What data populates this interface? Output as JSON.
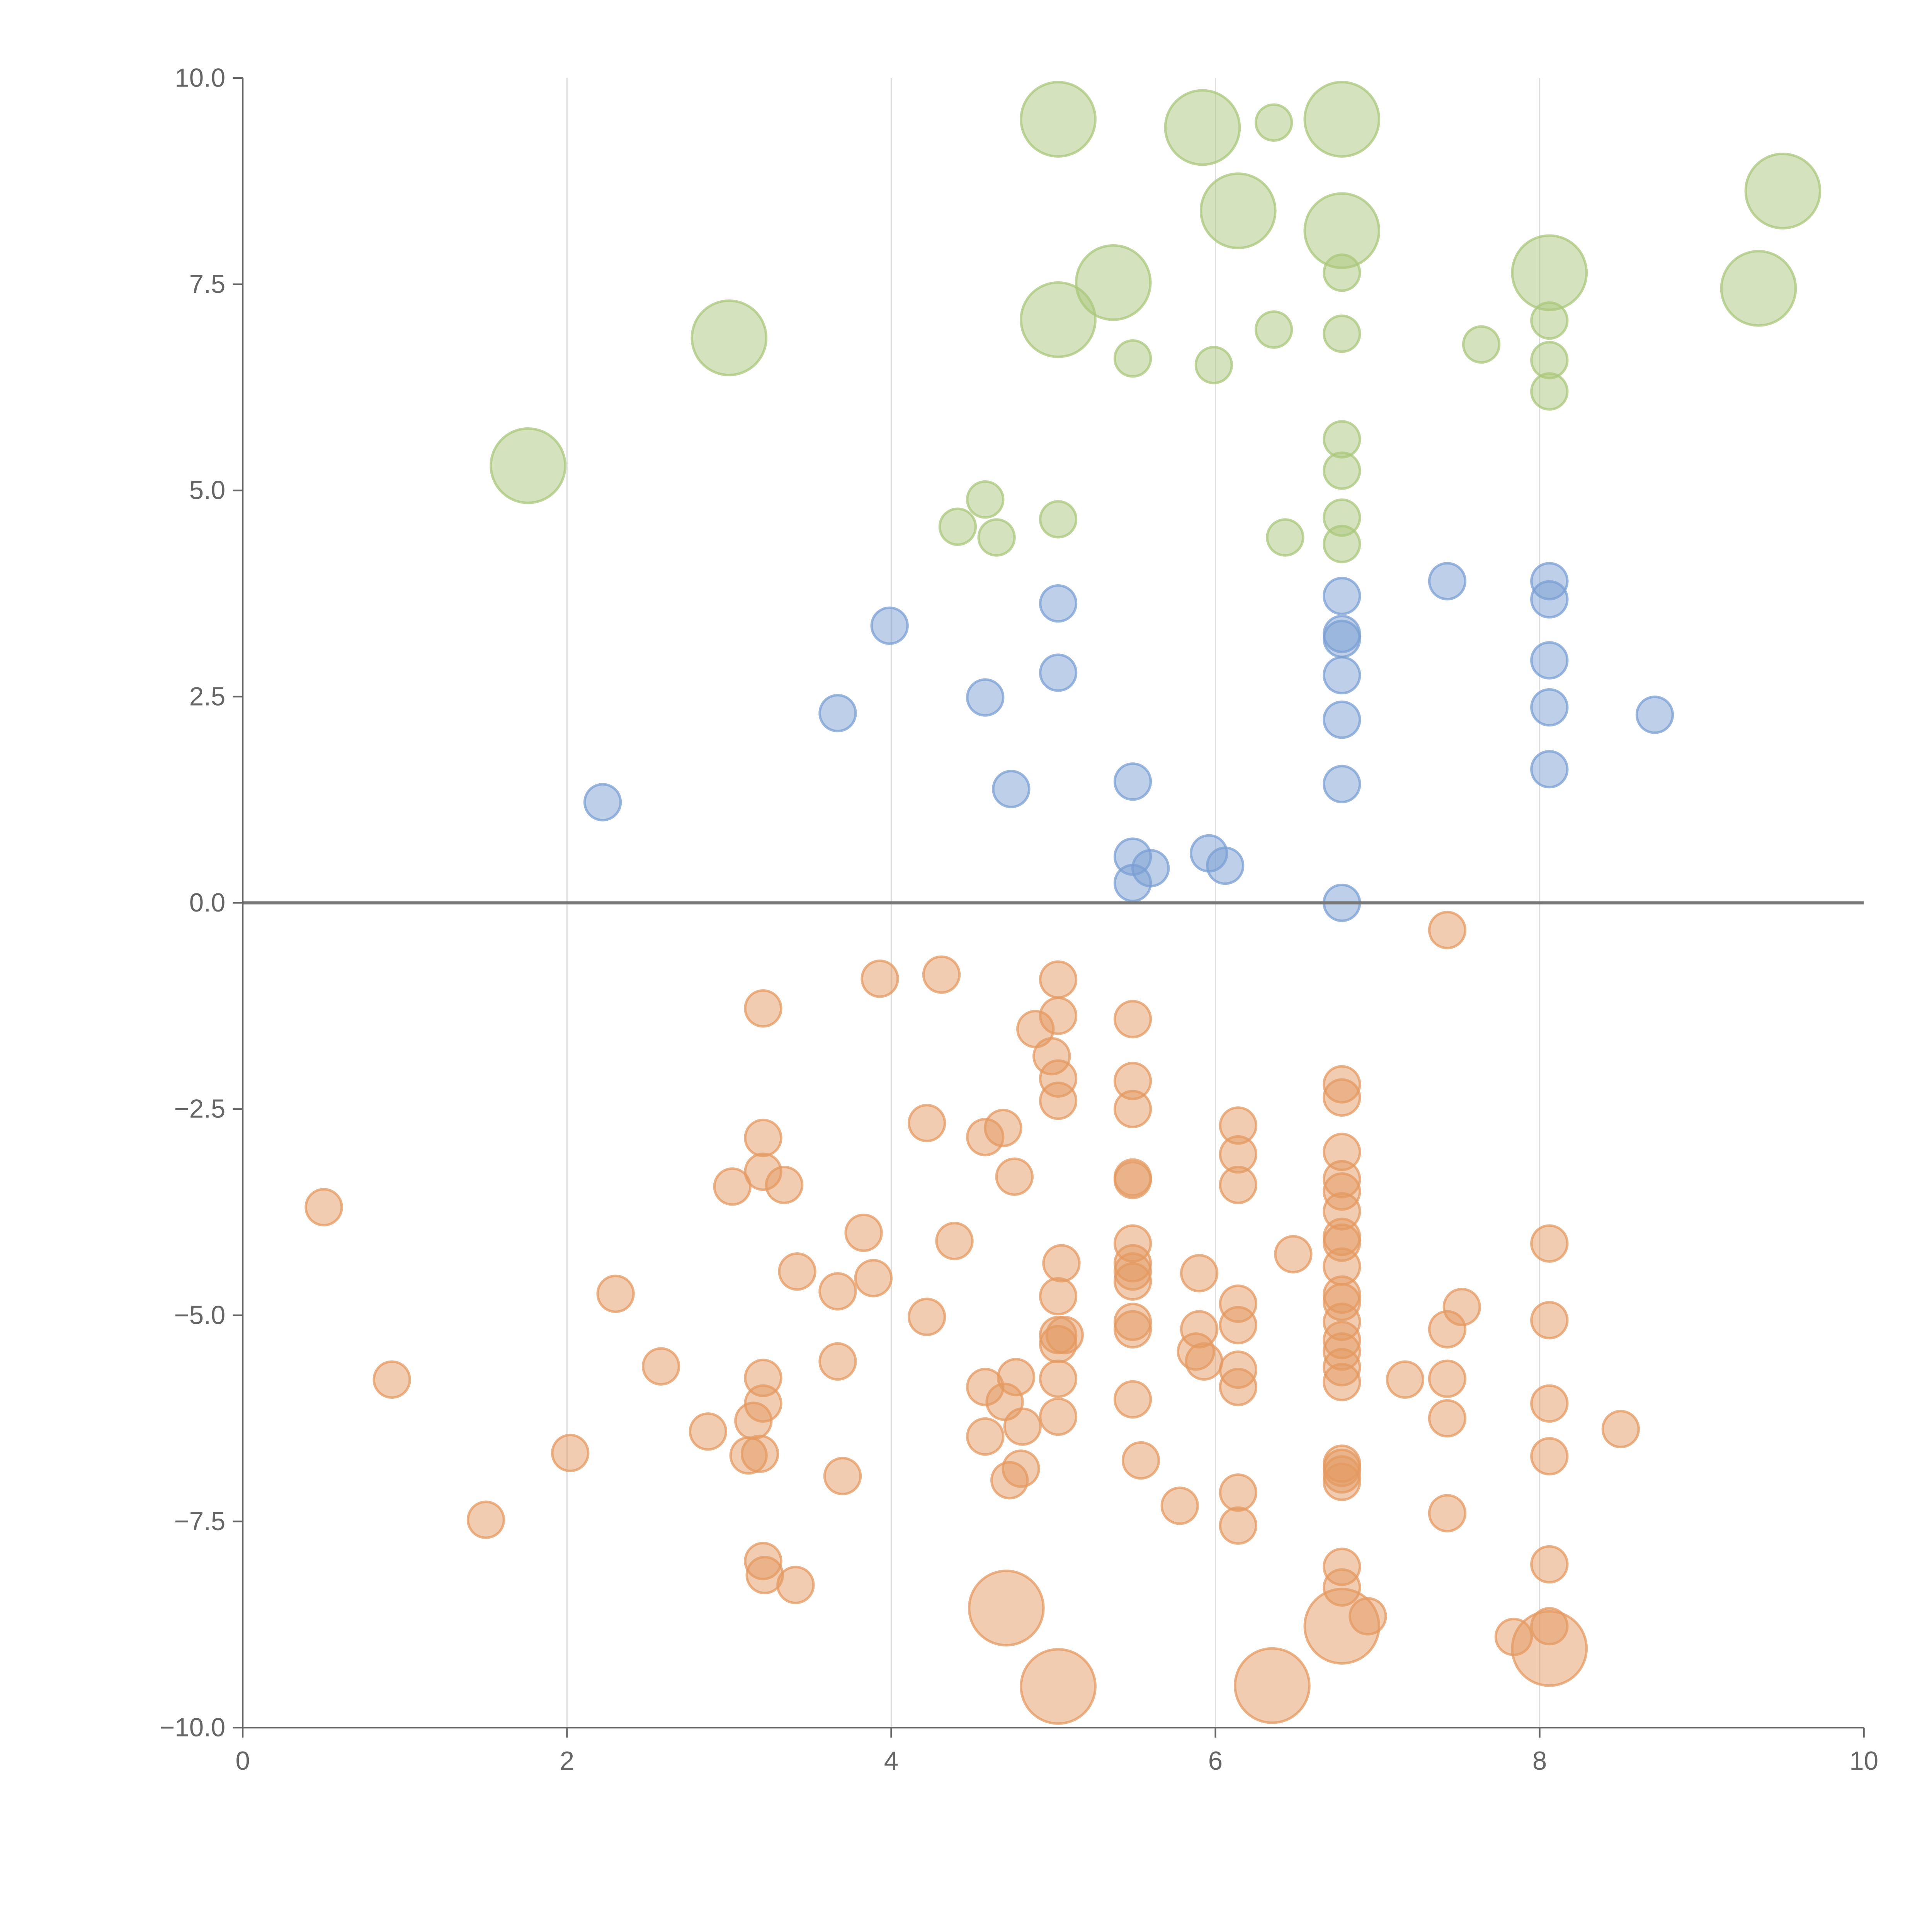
{
  "chart_data": {
    "type": "scatter",
    "title": "",
    "xlabel": "",
    "ylabel": "",
    "xlim": [
      0,
      10
    ],
    "ylim": [
      -10,
      10
    ],
    "grid": "vertical at x ticks",
    "x_ticks": [
      0,
      2,
      4,
      6,
      8,
      10
    ],
    "x_tick_labels": [
      "0",
      "2",
      "4",
      "6",
      "8",
      "10"
    ],
    "y_ticks": [
      10,
      7.5,
      5,
      2.5,
      0,
      -2.5,
      -5,
      -7.5,
      -10
    ],
    "y_tick_labels": [
      "10.0",
      "7.5",
      "5.0",
      "2.5",
      "0.0",
      "−2.5",
      "−5.0",
      "−7.5",
      "−10.0"
    ],
    "point_format": "[x, y, size_class] where size_class 1 = small, 2 = large",
    "series": [
      {
        "name": "green",
        "color": "#a9c77c",
        "points": [
          [
            5.03,
            9.5,
            2
          ],
          [
            5.92,
            9.4,
            2
          ],
          [
            6.78,
            9.5,
            2
          ],
          [
            6.14,
            8.39,
            2
          ],
          [
            6.78,
            8.15,
            2
          ],
          [
            8.06,
            7.64,
            2
          ],
          [
            9.5,
            8.63,
            2
          ],
          [
            9.35,
            7.45,
            2
          ],
          [
            5.37,
            7.52,
            2
          ],
          [
            5.03,
            7.07,
            2
          ],
          [
            3.0,
            6.85,
            2
          ],
          [
            1.76,
            5.3,
            2
          ],
          [
            6.36,
            9.46,
            1
          ],
          [
            6.78,
            7.64,
            1
          ],
          [
            6.36,
            6.95,
            1
          ],
          [
            6.78,
            6.9,
            1
          ],
          [
            7.64,
            6.77,
            1
          ],
          [
            5.49,
            6.6,
            1
          ],
          [
            5.99,
            6.52,
            1
          ],
          [
            8.06,
            7.06,
            1
          ],
          [
            8.06,
            6.58,
            1
          ],
          [
            8.06,
            6.2,
            1
          ],
          [
            6.78,
            5.62,
            1
          ],
          [
            6.78,
            5.24,
            1
          ],
          [
            6.78,
            4.67,
            1
          ],
          [
            6.78,
            4.35,
            1
          ],
          [
            6.43,
            4.43,
            1
          ],
          [
            5.03,
            4.65,
            1
          ],
          [
            4.58,
            4.89,
            1
          ],
          [
            4.41,
            4.56,
            1
          ],
          [
            4.65,
            4.43,
            1
          ]
        ]
      },
      {
        "name": "blue",
        "color": "#7b9fd3",
        "points": [
          [
            2.22,
            1.22,
            1
          ],
          [
            3.67,
            2.3,
            1
          ],
          [
            3.99,
            3.36,
            1
          ],
          [
            4.58,
            2.49,
            1
          ],
          [
            5.03,
            3.63,
            1
          ],
          [
            5.03,
            2.79,
            1
          ],
          [
            4.74,
            1.38,
            1
          ],
          [
            5.49,
            1.47,
            1
          ],
          [
            5.49,
            0.56,
            1
          ],
          [
            5.49,
            0.24,
            1
          ],
          [
            5.6,
            0.42,
            1
          ],
          [
            5.96,
            0.6,
            1
          ],
          [
            6.06,
            0.45,
            1
          ],
          [
            6.78,
            3.72,
            1
          ],
          [
            6.78,
            3.26,
            1
          ],
          [
            6.78,
            3.2,
            1
          ],
          [
            6.78,
            2.76,
            1
          ],
          [
            6.78,
            2.22,
            1
          ],
          [
            6.78,
            1.44,
            1
          ],
          [
            6.78,
            0,
            1
          ],
          [
            7.43,
            3.9,
            1
          ],
          [
            8.06,
            3.9,
            1
          ],
          [
            8.06,
            3.68,
            1
          ],
          [
            8.06,
            2.94,
            1
          ],
          [
            8.06,
            2.37,
            1
          ],
          [
            8.06,
            1.62,
            1
          ],
          [
            8.71,
            2.28,
            1
          ]
        ]
      },
      {
        "name": "orange",
        "color": "#e49a62",
        "points": [
          [
            7.43,
            -0.33,
            1
          ],
          [
            3.93,
            -0.92,
            1
          ],
          [
            4.31,
            -0.87,
            1
          ],
          [
            3.21,
            -1.28,
            1
          ],
          [
            5.03,
            -0.93,
            1
          ],
          [
            5.03,
            -1.37,
            1
          ],
          [
            4.89,
            -1.53,
            1
          ],
          [
            4.99,
            -1.86,
            1
          ],
          [
            5.03,
            -2.13,
            1
          ],
          [
            5.03,
            -2.4,
            1
          ],
          [
            5.49,
            -1.41,
            1
          ],
          [
            5.49,
            -2.16,
            1
          ],
          [
            5.49,
            -2.5,
            1
          ],
          [
            5.49,
            -3.33,
            1
          ],
          [
            5.49,
            -3.36,
            1
          ],
          [
            4.22,
            -2.67,
            1
          ],
          [
            4.58,
            -2.84,
            1
          ],
          [
            4.69,
            -2.73,
            1
          ],
          [
            4.76,
            -3.32,
            1
          ],
          [
            3.21,
            -2.85,
            1
          ],
          [
            3.21,
            -3.26,
            1
          ],
          [
            3.34,
            -3.42,
            1
          ],
          [
            3.02,
            -3.44,
            1
          ],
          [
            0.5,
            -3.69,
            1
          ],
          [
            3.83,
            -4.0,
            1
          ],
          [
            4.39,
            -4.1,
            1
          ],
          [
            3.42,
            -4.47,
            1
          ],
          [
            3.89,
            -4.55,
            1
          ],
          [
            3.67,
            -4.71,
            1
          ],
          [
            2.3,
            -4.74,
            1
          ],
          [
            4.22,
            -5.02,
            1
          ],
          [
            5.05,
            -4.37,
            1
          ],
          [
            5.03,
            -4.77,
            1
          ],
          [
            5.03,
            -5.24,
            1
          ],
          [
            5.07,
            -5.24,
            1
          ],
          [
            5.03,
            -5.35,
            1
          ],
          [
            5.03,
            -5.77,
            1
          ],
          [
            5.03,
            -6.23,
            1
          ],
          [
            5.49,
            -4.13,
            1
          ],
          [
            5.49,
            -4.37,
            1
          ],
          [
            5.49,
            -4.47,
            1
          ],
          [
            5.49,
            -4.59,
            1
          ],
          [
            5.49,
            -5.08,
            1
          ],
          [
            5.49,
            -5.17,
            1
          ],
          [
            5.49,
            -6.02,
            1
          ],
          [
            5.54,
            -6.76,
            1
          ],
          [
            5.9,
            -4.49,
            1
          ],
          [
            5.9,
            -5.17,
            1
          ],
          [
            5.88,
            -5.44,
            1
          ],
          [
            5.93,
            -5.56,
            1
          ],
          [
            5.78,
            -7.31,
            1
          ],
          [
            6.14,
            -2.7,
            1
          ],
          [
            6.14,
            -3.05,
            1
          ],
          [
            6.14,
            -3.42,
            1
          ],
          [
            6.14,
            -4.86,
            1
          ],
          [
            6.14,
            -5.12,
            1
          ],
          [
            6.14,
            -5.66,
            1
          ],
          [
            6.14,
            -5.87,
            1
          ],
          [
            6.14,
            -7.15,
            1
          ],
          [
            6.14,
            -7.55,
            1
          ],
          [
            6.48,
            -4.26,
            1
          ],
          [
            6.78,
            -2.2,
            1
          ],
          [
            6.78,
            -2.36,
            1
          ],
          [
            6.78,
            -3.02,
            1
          ],
          [
            6.78,
            -3.35,
            1
          ],
          [
            6.78,
            -3.5,
            1
          ],
          [
            6.78,
            -3.74,
            1
          ],
          [
            6.78,
            -4.05,
            1
          ],
          [
            6.78,
            -4.12,
            1
          ],
          [
            6.78,
            -4.41,
            1
          ],
          [
            6.78,
            -4.75,
            1
          ],
          [
            6.78,
            -4.84,
            1
          ],
          [
            6.78,
            -5.08,
            1
          ],
          [
            6.78,
            -5.3,
            1
          ],
          [
            6.78,
            -5.44,
            1
          ],
          [
            6.78,
            -5.63,
            1
          ],
          [
            6.78,
            -5.81,
            1
          ],
          [
            6.78,
            -6.8,
            1
          ],
          [
            6.78,
            -6.85,
            1
          ],
          [
            6.78,
            -6.93,
            1
          ],
          [
            6.78,
            -7.02,
            1
          ],
          [
            6.78,
            -8.05,
            1
          ],
          [
            6.78,
            -8.3,
            1
          ],
          [
            6.94,
            -8.65,
            1
          ],
          [
            7.17,
            -5.78,
            1
          ],
          [
            7.43,
            -5.17,
            1
          ],
          [
            7.52,
            -4.9,
            1
          ],
          [
            7.43,
            -5.77,
            1
          ],
          [
            7.43,
            -6.25,
            1
          ],
          [
            7.43,
            -7.4,
            1
          ],
          [
            8.06,
            -4.13,
            1
          ],
          [
            8.06,
            -5.06,
            1
          ],
          [
            8.06,
            -6.07,
            1
          ],
          [
            8.06,
            -6.71,
            1
          ],
          [
            8.06,
            -8.02,
            1
          ],
          [
            8.06,
            -8.77,
            1
          ],
          [
            7.84,
            -8.9,
            1
          ],
          [
            8.5,
            -6.38,
            1
          ],
          [
            0.92,
            -5.78,
            1
          ],
          [
            1.5,
            -7.48,
            1
          ],
          [
            2.02,
            -6.67,
            1
          ],
          [
            2.58,
            -5.62,
            1
          ],
          [
            2.87,
            -6.41,
            1
          ],
          [
            3.15,
            -6.28,
            1
          ],
          [
            3.21,
            -5.76,
            1
          ],
          [
            3.21,
            -6.07,
            1
          ],
          [
            3.12,
            -6.7,
            1
          ],
          [
            3.19,
            -6.68,
            1
          ],
          [
            3.7,
            -6.95,
            1
          ],
          [
            3.67,
            -5.56,
            1
          ],
          [
            3.21,
            -7.98,
            1
          ],
          [
            3.22,
            -8.15,
            1
          ],
          [
            3.41,
            -8.27,
            1
          ],
          [
            4.58,
            -5.87,
            1
          ],
          [
            4.77,
            -5.75,
            1
          ],
          [
            4.7,
            -6.05,
            1
          ],
          [
            4.81,
            -6.35,
            1
          ],
          [
            4.58,
            -6.47,
            1
          ],
          [
            4.8,
            -6.86,
            1
          ],
          [
            4.73,
            -7.0,
            1
          ],
          [
            4.71,
            -8.55,
            2
          ],
          [
            5.03,
            -9.5,
            2
          ],
          [
            6.35,
            -9.49,
            2
          ],
          [
            6.78,
            -8.77,
            2
          ],
          [
            8.06,
            -9.04,
            2
          ]
        ]
      }
    ]
  }
}
